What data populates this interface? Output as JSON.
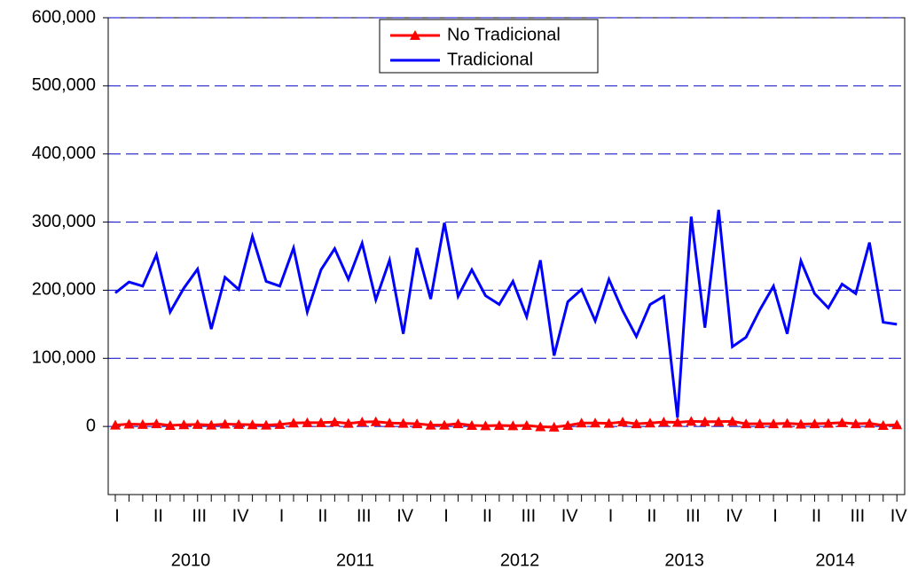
{
  "chart_data": {
    "type": "line",
    "categories": [
      "I",
      null,
      null,
      "II",
      null,
      null,
      "III",
      null,
      null,
      "IV",
      null,
      null,
      "I",
      null,
      null,
      "II",
      null,
      null,
      "III",
      null,
      null,
      "IV",
      null,
      null,
      "I",
      null,
      null,
      "II",
      null,
      null,
      "III",
      null,
      null,
      "IV",
      null,
      null,
      "I",
      null,
      null,
      "II",
      null,
      null,
      "III",
      null,
      null,
      "IV",
      null,
      null,
      "I",
      null,
      null,
      "II",
      null,
      null,
      "III",
      null,
      null,
      "IV"
    ],
    "years": [
      "2010",
      "2011",
      "2012",
      "2013",
      "2014"
    ],
    "series": [
      {
        "name": "No Tradicional",
        "color": "#ff0000",
        "marker": "triangle",
        "values": [
          2000,
          3500,
          3000,
          4000,
          1500,
          2500,
          3000,
          2000,
          3500,
          3000,
          2500,
          2000,
          3000,
          5000,
          5500,
          5500,
          6500,
          4500,
          6500,
          7000,
          5000,
          4500,
          4000,
          2000,
          2000,
          4000,
          1500,
          1000,
          1500,
          1000,
          1500,
          -500,
          -1000,
          1500,
          5000,
          5000,
          4500,
          6500,
          4000,
          5000,
          6500,
          6000,
          7500,
          7000,
          7000,
          7500,
          4000,
          4000,
          4000,
          4500,
          3500,
          4000,
          4500,
          5500,
          4000,
          4500,
          1500,
          2500
        ]
      },
      {
        "name": "Tradicional",
        "color": "#0000ff",
        "values": [
          196000,
          212000,
          206000,
          252000,
          168000,
          203000,
          231000,
          143000,
          219000,
          201000,
          279000,
          213000,
          206000,
          262000,
          168000,
          230000,
          261000,
          216000,
          269000,
          186000,
          244000,
          136000,
          262000,
          187000,
          299000,
          191000,
          230000,
          192000,
          179000,
          213000,
          161000,
          244000,
          104000,
          183000,
          201000,
          155000,
          216000,
          170000,
          132000,
          179000,
          191000,
          13000,
          308000,
          145000,
          318000,
          117000,
          131000,
          171000,
          206000,
          136000,
          243000,
          195000,
          174000,
          209000,
          195000,
          270000,
          153000,
          150000
        ]
      }
    ],
    "ylim": [
      -100000,
      600000
    ],
    "yticks": [
      {
        "value": 0,
        "label": "0"
      },
      {
        "value": 100000,
        "label": "100,000"
      },
      {
        "value": 200000,
        "label": "200,000"
      },
      {
        "value": 300000,
        "label": "300,000"
      },
      {
        "value": 400000,
        "label": "400,000"
      },
      {
        "value": 500000,
        "label": "500,000"
      },
      {
        "value": 600000,
        "label": "600,000"
      }
    ],
    "grid": true,
    "legend": "top"
  }
}
